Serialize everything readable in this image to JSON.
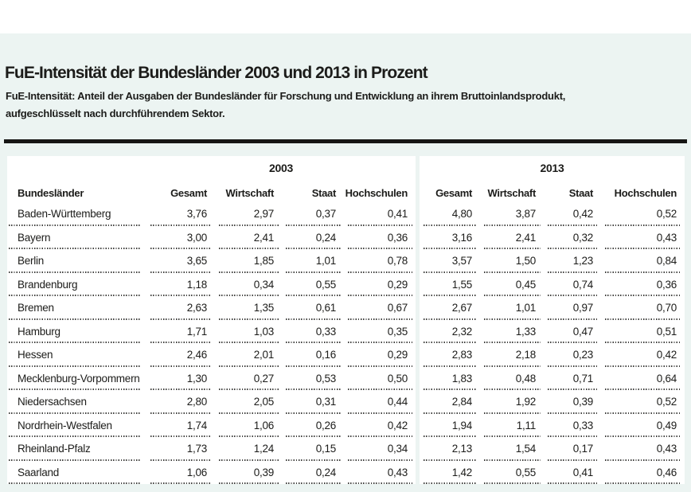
{
  "page": {
    "title": "FuE-Intensität der Bundesländer 2003 und 2013 in Prozent",
    "subtitle_line1": "FuE-Intensität: Anteil der Ausgaben der Bundesländer für Forschung und Entwicklung an ihrem Bruttoinlandsprodukt,",
    "subtitle_line2": "aufgeschlüsselt nach durchführendem Sektor."
  },
  "colors": {
    "background_tint": "#ecf4f2",
    "panel_background": "#ffffff",
    "text": "#1c1c1a",
    "rule": "#161614",
    "dotted_line": "#3f3f3d"
  },
  "table": {
    "row_header_label": "Bundesländer",
    "groups": [
      {
        "year": "2003",
        "columns": [
          "Gesamt",
          "Wirtschaft",
          "Staat",
          "Hochschulen"
        ]
      },
      {
        "year": "2013",
        "columns": [
          "Gesamt",
          "Wirtschaft",
          "Staat",
          "Hochschulen"
        ]
      }
    ],
    "rows": [
      {
        "name": "Baden-Württemberg",
        "y2003": [
          "3,76",
          "2,97",
          "0,37",
          "0,41"
        ],
        "y2013": [
          "4,80",
          "3,87",
          "0,42",
          "0,52"
        ]
      },
      {
        "name": "Bayern",
        "y2003": [
          "3,00",
          "2,41",
          "0,24",
          "0,36"
        ],
        "y2013": [
          "3,16",
          "2,41",
          "0,32",
          "0,43"
        ]
      },
      {
        "name": "Berlin",
        "y2003": [
          "3,65",
          "1,85",
          "1,01",
          "0,78"
        ],
        "y2013": [
          "3,57",
          "1,50",
          "1,23",
          "0,84"
        ]
      },
      {
        "name": "Brandenburg",
        "y2003": [
          "1,18",
          "0,34",
          "0,55",
          "0,29"
        ],
        "y2013": [
          "1,55",
          "0,45",
          "0,74",
          "0,36"
        ]
      },
      {
        "name": "Bremen",
        "y2003": [
          "2,63",
          "1,35",
          "0,61",
          "0,67"
        ],
        "y2013": [
          "2,67",
          "1,01",
          "0,97",
          "0,70"
        ]
      },
      {
        "name": "Hamburg",
        "y2003": [
          "1,71",
          "1,03",
          "0,33",
          "0,35"
        ],
        "y2013": [
          "2,32",
          "1,33",
          "0,47",
          "0,51"
        ]
      },
      {
        "name": "Hessen",
        "y2003": [
          "2,46",
          "2,01",
          "0,16",
          "0,29"
        ],
        "y2013": [
          "2,83",
          "2,18",
          "0,23",
          "0,42"
        ]
      },
      {
        "name": "Mecklenburg-Vorpommern",
        "y2003": [
          "1,30",
          "0,27",
          "0,53",
          "0,50"
        ],
        "y2013": [
          "1,83",
          "0,48",
          "0,71",
          "0,64"
        ]
      },
      {
        "name": "Niedersachsen",
        "y2003": [
          "2,80",
          "2,05",
          "0,31",
          "0,44"
        ],
        "y2013": [
          "2,84",
          "1,92",
          "0,39",
          "0,52"
        ]
      },
      {
        "name": "Nordrhein-Westfalen",
        "y2003": [
          "1,74",
          "1,06",
          "0,26",
          "0,42"
        ],
        "y2013": [
          "1,94",
          "1,11",
          "0,33",
          "0,49"
        ]
      },
      {
        "name": "Rheinland-Pfalz",
        "y2003": [
          "1,73",
          "1,24",
          "0,15",
          "0,34"
        ],
        "y2013": [
          "2,13",
          "1,54",
          "0,17",
          "0,43"
        ]
      },
      {
        "name": "Saarland",
        "y2003": [
          "1,06",
          "0,39",
          "0,24",
          "0,43"
        ],
        "y2013": [
          "1,42",
          "0,55",
          "0,41",
          "0,46"
        ]
      }
    ]
  },
  "chart_data": {
    "type": "table",
    "title": "FuE-Intensität der Bundesländer 2003 und 2013 in Prozent",
    "note": "FuE-Intensität: Anteil der Ausgaben der Bundesländer für Forschung und Entwicklung an ihrem Bruttoinlandsprodukt, aufgeschlüsselt nach durchführendem Sektor.",
    "unit": "Prozent",
    "column_groups": [
      "2003",
      "2013"
    ],
    "columns": [
      "Bundesländer",
      "2003 Gesamt",
      "2003 Wirtschaft",
      "2003 Staat",
      "2003 Hochschulen",
      "2013 Gesamt",
      "2013 Wirtschaft",
      "2013 Staat",
      "2013 Hochschulen"
    ],
    "rows": [
      [
        "Baden-Württemberg",
        3.76,
        2.97,
        0.37,
        0.41,
        4.8,
        3.87,
        0.42,
        0.52
      ],
      [
        "Bayern",
        3.0,
        2.41,
        0.24,
        0.36,
        3.16,
        2.41,
        0.32,
        0.43
      ],
      [
        "Berlin",
        3.65,
        1.85,
        1.01,
        0.78,
        3.57,
        1.5,
        1.23,
        0.84
      ],
      [
        "Brandenburg",
        1.18,
        0.34,
        0.55,
        0.29,
        1.55,
        0.45,
        0.74,
        0.36
      ],
      [
        "Bremen",
        2.63,
        1.35,
        0.61,
        0.67,
        2.67,
        1.01,
        0.97,
        0.7
      ],
      [
        "Hamburg",
        1.71,
        1.03,
        0.33,
        0.35,
        2.32,
        1.33,
        0.47,
        0.51
      ],
      [
        "Hessen",
        2.46,
        2.01,
        0.16,
        0.29,
        2.83,
        2.18,
        0.23,
        0.42
      ],
      [
        "Mecklenburg-Vorpommern",
        1.3,
        0.27,
        0.53,
        0.5,
        1.83,
        0.48,
        0.71,
        0.64
      ],
      [
        "Niedersachsen",
        2.8,
        2.05,
        0.31,
        0.44,
        2.84,
        1.92,
        0.39,
        0.52
      ],
      [
        "Nordrhein-Westfalen",
        1.74,
        1.06,
        0.26,
        0.42,
        1.94,
        1.11,
        0.33,
        0.49
      ],
      [
        "Rheinland-Pfalz",
        1.73,
        1.24,
        0.15,
        0.34,
        2.13,
        1.54,
        0.17,
        0.43
      ],
      [
        "Saarland",
        1.06,
        0.39,
        0.24,
        0.43,
        1.42,
        0.55,
        0.41,
        0.46
      ]
    ]
  }
}
